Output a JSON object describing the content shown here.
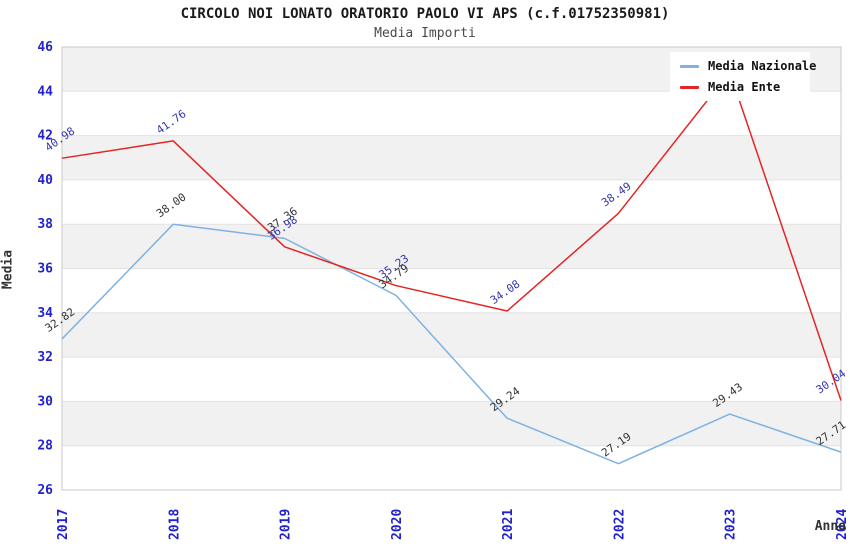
{
  "chart": {
    "title": "CIRCOLO NOI LONATO ORATORIO PAOLO VI APS (c.f.01752350981)",
    "subtitle": "Media Importi",
    "xlabel": "Anno",
    "ylabel": "Media"
  },
  "chart_data": {
    "type": "line",
    "x": [
      "2017",
      "2018",
      "2019",
      "2020",
      "2021",
      "2022",
      "2023",
      "2024"
    ],
    "series": [
      {
        "name": "Media Nazionale",
        "color": "#7fb2e2",
        "label_color": "#333333",
        "values": [
          32.82,
          38.0,
          37.36,
          34.79,
          29.24,
          27.19,
          29.43,
          27.71
        ],
        "labels": [
          "32.82",
          "38.00",
          "37.36",
          "34.79",
          "29.24",
          "27.19",
          "29.43",
          "27.71"
        ]
      },
      {
        "name": "Media Ente",
        "color": "#e42525",
        "label_color": "#3434ae",
        "values": [
          40.98,
          41.76,
          36.98,
          35.23,
          34.08,
          38.49,
          44.87,
          30.04
        ],
        "labels": [
          "40.98",
          "41.76",
          "36.98",
          "35.23",
          "34.08",
          "38.49",
          null,
          "30.04"
        ]
      }
    ],
    "ylim": [
      26,
      46
    ],
    "ytick_step": 2,
    "yticks": [
      "26",
      "28",
      "30",
      "32",
      "34",
      "36",
      "38",
      "40",
      "42",
      "44",
      "46"
    ],
    "grid": true,
    "band_color": "#f1f1f1",
    "grid_color": "#e2e2e2",
    "border_color": "#c9c9c9",
    "axis_tick_color": "#2222cc",
    "legend_position": "top-right",
    "legend": [
      "Media Nazionale",
      "Media Ente"
    ],
    "note": "2023 Media Ente label hidden behind legend; value estimated from line slope"
  }
}
